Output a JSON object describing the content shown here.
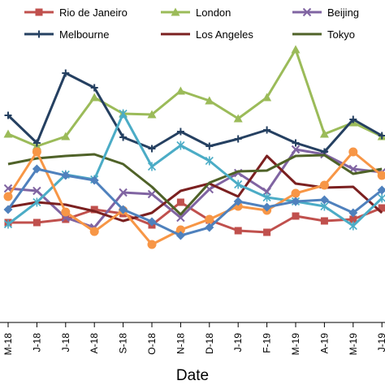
{
  "chart_data": {
    "type": "line",
    "xlabel": "Date",
    "ylabel": "",
    "grid": false,
    "legend_position": "top",
    "categories": [
      "M-18",
      "J-18",
      "J-18",
      "A-18",
      "S-18",
      "O-18",
      "N-18",
      "D-18",
      "J-19",
      "F-19",
      "M-19",
      "A-19",
      "M-19",
      "J-19"
    ],
    "series": [
      {
        "name": "Rio de Janeiro",
        "color": "#c0504d",
        "marker": "square",
        "values": [
          274,
          274,
          270,
          258,
          263,
          277,
          249,
          271,
          284,
          286,
          266,
          272,
          270,
          256
        ]
      },
      {
        "name": "London",
        "color": "#9bbb59",
        "marker": "triangle",
        "values": [
          165,
          180,
          168,
          120,
          140,
          141,
          112,
          124,
          146,
          120,
          61,
          165,
          151,
          168
        ]
      },
      {
        "name": "Beijing",
        "color": "#8064a2",
        "marker": "x",
        "values": [
          232,
          235,
          268,
          280,
          237,
          239,
          268,
          233,
          213,
          236,
          184,
          190,
          208,
          212
        ]
      },
      {
        "name": "Melbourne",
        "color": "#254061",
        "marker": "plus",
        "values": [
          142,
          176,
          90,
          108,
          169,
          183,
          162,
          180,
          171,
          160,
          176,
          187,
          147,
          167
        ]
      },
      {
        "name": "Los Angeles",
        "color": "#7b2020",
        "marker": "none",
        "values": [
          255,
          249,
          252,
          260,
          272,
          262,
          235,
          226,
          242,
          192,
          226,
          231,
          230,
          262
        ]
      },
      {
        "name": "Tokyo",
        "color": "#4f6228",
        "marker": "none",
        "values": [
          202,
          195,
          192,
          190,
          202,
          230,
          264,
          225,
          211,
          210,
          192,
          191,
          214,
          208
        ]
      },
      {
        "name": "",
        "color": "#4bacc6",
        "marker": "star",
        "values": [
          276,
          249,
          215,
          221,
          140,
          205,
          179,
          198,
          227,
          243,
          248,
          254,
          278,
          244
        ]
      },
      {
        "name": "",
        "color": "#f79646",
        "marker": "circle",
        "values": [
          242,
          187,
          261,
          285,
          259,
          301,
          283,
          270,
          254,
          259,
          238,
          228,
          187,
          216
        ]
      },
      {
        "name": "",
        "color": "#4f81bd",
        "marker": "diamond",
        "values": [
          258,
          208,
          216,
          222,
          258,
          273,
          290,
          280,
          248,
          255,
          248,
          246,
          262,
          234
        ]
      }
    ]
  }
}
